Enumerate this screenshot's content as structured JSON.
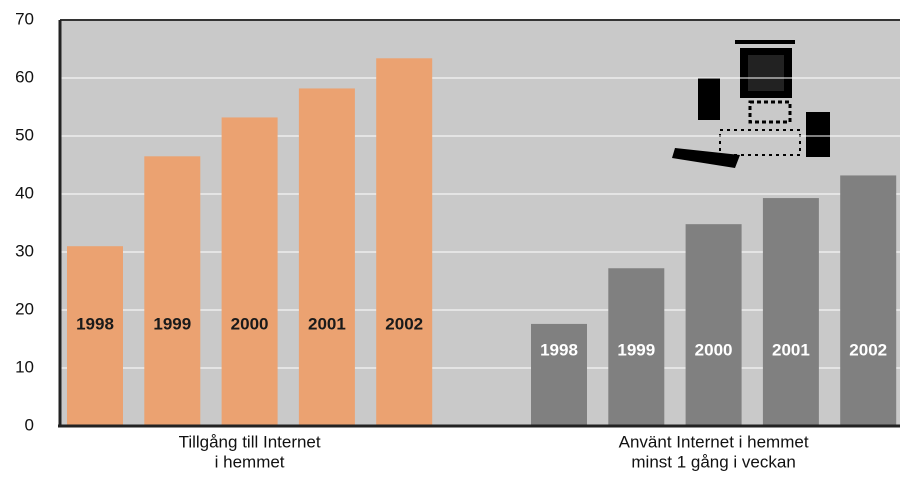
{
  "chart_data": {
    "type": "bar",
    "ylim": [
      0,
      70
    ],
    "yticks": [
      0,
      10,
      20,
      30,
      40,
      50,
      60,
      70
    ],
    "grid": true,
    "groups": [
      {
        "label": [
          "Tillgång till Internet",
          "i hemmet"
        ],
        "color": "#eba271",
        "label_color": "#1a1a1a",
        "categories": [
          "1998",
          "1999",
          "2000",
          "2001",
          "2002"
        ],
        "values": [
          31,
          46.5,
          53.2,
          58.2,
          63.4
        ]
      },
      {
        "label": [
          "Använt Internet i hemmet",
          "minst 1 gång i veckan"
        ],
        "color": "#808080",
        "label_color": "#ffffff",
        "categories": [
          "1998",
          "1999",
          "2000",
          "2001",
          "2002"
        ],
        "values": [
          17.6,
          27.2,
          34.8,
          39.3,
          43.2
        ]
      }
    ]
  }
}
